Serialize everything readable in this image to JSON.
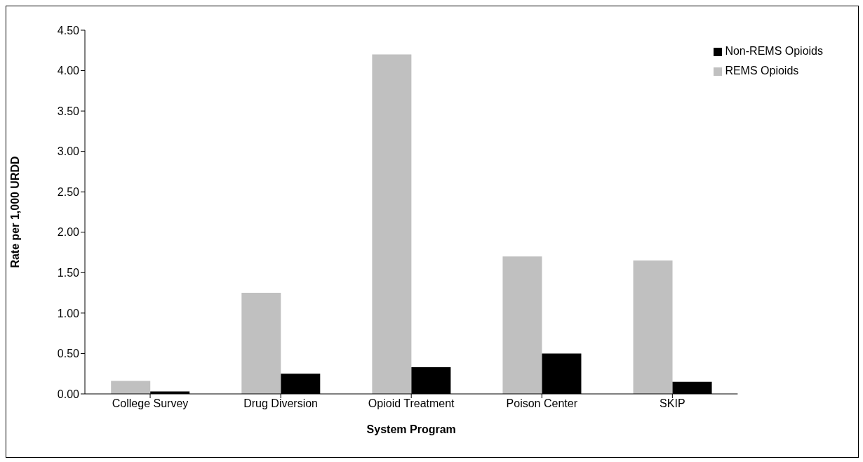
{
  "chart_data": {
    "type": "bar",
    "xlabel": "System Program",
    "ylabel": "Rate per 1,000 URDD",
    "categories": [
      "College Survey",
      "Drug Diversion",
      "Opioid Treatment",
      "Poison Center",
      "SKIP"
    ],
    "series": [
      {
        "name": "REMS Opioids",
        "color": "#c0c0c0",
        "values": [
          0.16,
          1.25,
          4.2,
          1.7,
          1.65
        ]
      },
      {
        "name": "Non-REMS Opioids",
        "color": "#000000",
        "values": [
          0.03,
          0.25,
          0.33,
          0.5,
          0.15
        ]
      }
    ],
    "ylim": [
      0,
      4.5
    ],
    "yticks": [
      {
        "value": 0,
        "label": "0.00"
      },
      {
        "value": 0.5,
        "label": "0.50"
      },
      {
        "value": 1,
        "label": "1.00"
      },
      {
        "value": 1.5,
        "label": "1.50"
      },
      {
        "value": 2,
        "label": "2.00"
      },
      {
        "value": 2.5,
        "label": "2.50"
      },
      {
        "value": 3,
        "label": "3.00"
      },
      {
        "value": 3.5,
        "label": "3.50"
      },
      {
        "value": 4,
        "label": "4.00"
      },
      {
        "value": 4.5,
        "label": "4.50"
      }
    ],
    "grid": false,
    "legend": "top right"
  }
}
